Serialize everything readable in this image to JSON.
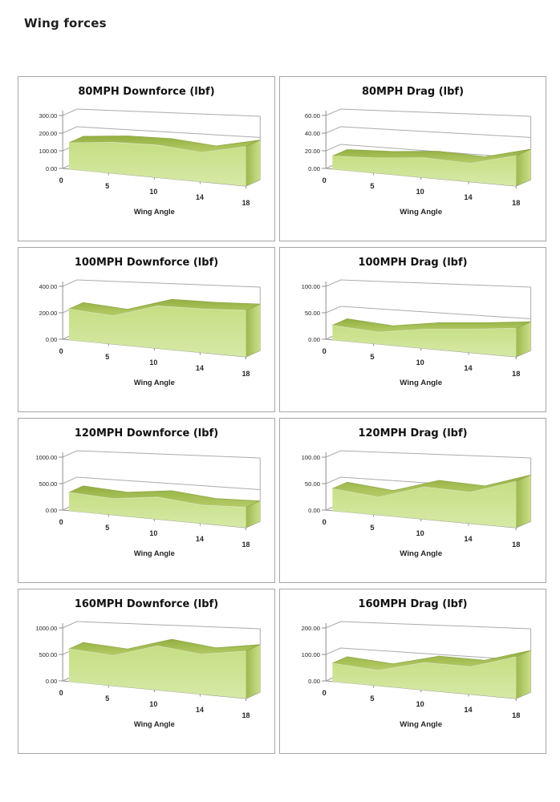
{
  "page": {
    "title": "Wing forces"
  },
  "colors": {
    "area_front_top": "#c6de84",
    "area_front_bottom": "#d6e9a6",
    "area_ribbon_dark": "#92af41",
    "area_ribbon_light": "#b6cc67",
    "area_ribbon_edge": "#8ca443",
    "area_cap_dark": "#9cb84e",
    "area_cap_light": "#cbdf8a",
    "grid": "#ababab",
    "axis": "#8f8f8f",
    "box_border": "#a6a6a6",
    "text": "#262626"
  },
  "chart_data": [
    {
      "type": "area",
      "title": "80MPH Downforce (lbf)",
      "xlabel": "Wing Angle",
      "categories": [
        "0",
        "5",
        "10",
        "14",
        "18"
      ],
      "values": [
        150,
        170,
        172,
        150,
        195
      ],
      "ytick_labels": [
        "0.00",
        "100.00",
        "200.00",
        "300.00"
      ],
      "ylim": [
        0,
        300
      ],
      "legend": "none",
      "grid": "horizontal-3d"
    },
    {
      "type": "area",
      "title": "80MPH Drag (lbf)",
      "xlabel": "Wing Angle",
      "categories": [
        "0",
        "5",
        "10",
        "14",
        "18"
      ],
      "values": [
        15,
        17,
        21,
        19,
        30
      ],
      "ytick_labels": [
        "0.00",
        "20.00",
        "40.00",
        "60.00"
      ],
      "ylim": [
        0,
        60
      ],
      "legend": "none",
      "grid": "horizontal-3d"
    },
    {
      "type": "area",
      "title": "100MPH Downforce (lbf)",
      "xlabel": "Wing Angle",
      "categories": [
        "0",
        "5",
        "10",
        "14",
        "18"
      ],
      "values": [
        235,
        208,
        300,
        298,
        305
      ],
      "ytick_labels": [
        "0.00",
        "200.00",
        "400.00"
      ],
      "ylim": [
        0,
        400
      ],
      "legend": "none",
      "grid": "horizontal-3d"
    },
    {
      "type": "area",
      "title": "100MPH Drag (lbf)",
      "xlabel": "Wing Angle",
      "categories": [
        "0",
        "5",
        "10",
        "14",
        "18"
      ],
      "values": [
        28,
        22,
        34,
        40,
        47
      ],
      "ytick_labels": [
        "0.00",
        "50.00",
        "100.00"
      ],
      "ylim": [
        0,
        100
      ],
      "legend": "none",
      "grid": "horizontal-3d"
    },
    {
      "type": "area",
      "title": "120MPH Downforce (lbf)",
      "xlabel": "Wing Angle",
      "categories": [
        "0",
        "5",
        "10",
        "14",
        "18"
      ],
      "values": [
        350,
        300,
        390,
        315,
        335
      ],
      "ytick_labels": [
        "0.00",
        "500.00",
        "1000.00"
      ],
      "ylim": [
        0,
        1000
      ],
      "legend": "none",
      "grid": "horizontal-3d"
    },
    {
      "type": "area",
      "title": "120MPH Drag (lbf)",
      "xlabel": "Wing Angle",
      "categories": [
        "0",
        "5",
        "10",
        "14",
        "18"
      ],
      "values": [
        42,
        33,
        57,
        53,
        76
      ],
      "ytick_labels": [
        "0.00",
        "50.00",
        "100.00"
      ],
      "ylim": [
        0,
        100
      ],
      "legend": "none",
      "grid": "horizontal-3d"
    },
    {
      "type": "area",
      "title": "160MPH Downforce (lbf)",
      "xlabel": "Wing Angle",
      "categories": [
        "0",
        "5",
        "10",
        "14",
        "18"
      ],
      "values": [
        620,
        555,
        780,
        680,
        780
      ],
      "ytick_labels": [
        "0.00",
        "500.00",
        "1000.00"
      ],
      "ylim": [
        0,
        1000
      ],
      "legend": "none",
      "grid": "horizontal-3d"
    },
    {
      "type": "area",
      "title": "160MPH Drag (lbf)",
      "xlabel": "Wing Angle",
      "categories": [
        "0",
        "5",
        "10",
        "14",
        "18"
      ],
      "values": [
        70,
        57,
        97,
        94,
        137
      ],
      "ytick_labels": [
        "0.00",
        "100.00",
        "200.00"
      ],
      "ylim": [
        0,
        200
      ],
      "legend": "none",
      "grid": "horizontal-3d"
    }
  ]
}
